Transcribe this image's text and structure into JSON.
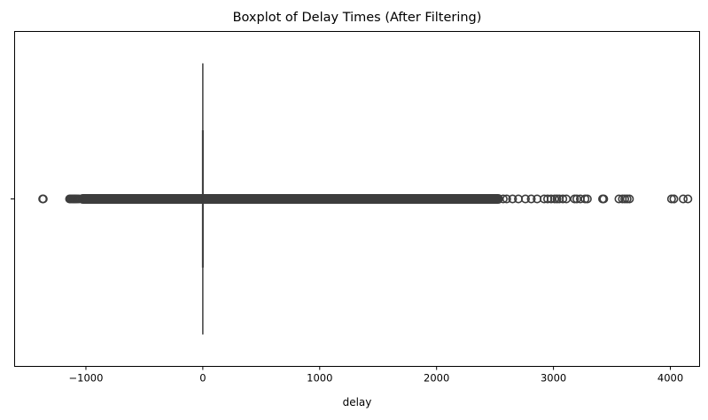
{
  "chart_data": {
    "type": "boxplot",
    "orientation": "horizontal",
    "title": "Boxplot of Delay Times (After Filtering)",
    "xlabel": "delay",
    "ylabel": "",
    "xlim": [
      -1610,
      4250
    ],
    "xticks": [
      -1000,
      0,
      1000,
      2000,
      3000,
      4000
    ],
    "xtick_labels": [
      "−1000",
      "0",
      "1000",
      "2000",
      "3000",
      "4000"
    ],
    "ytick_labels": [
      ""
    ],
    "box": {
      "q1": 0,
      "median": 0,
      "q3": 0,
      "whisker_low": 0,
      "whisker_high": 0
    },
    "outlier_band": [
      -1060,
      2560
    ],
    "outliers": [
      -1370,
      -1365,
      -1140,
      -1130,
      -1120,
      -1110,
      -1100,
      -1095,
      -1085,
      -1075,
      -1060,
      2570,
      2600,
      2650,
      2700,
      2760,
      2810,
      2860,
      2920,
      2950,
      2980,
      3010,
      3030,
      3050,
      3080,
      3110,
      3180,
      3200,
      3230,
      3270,
      3290,
      3420,
      3430,
      3560,
      3590,
      3610,
      3630,
      3650,
      4010,
      4030,
      4110,
      4150
    ],
    "grid": false,
    "colors": {
      "line": "#3d3d3d",
      "axes": "#000000",
      "background": "#ffffff"
    }
  }
}
